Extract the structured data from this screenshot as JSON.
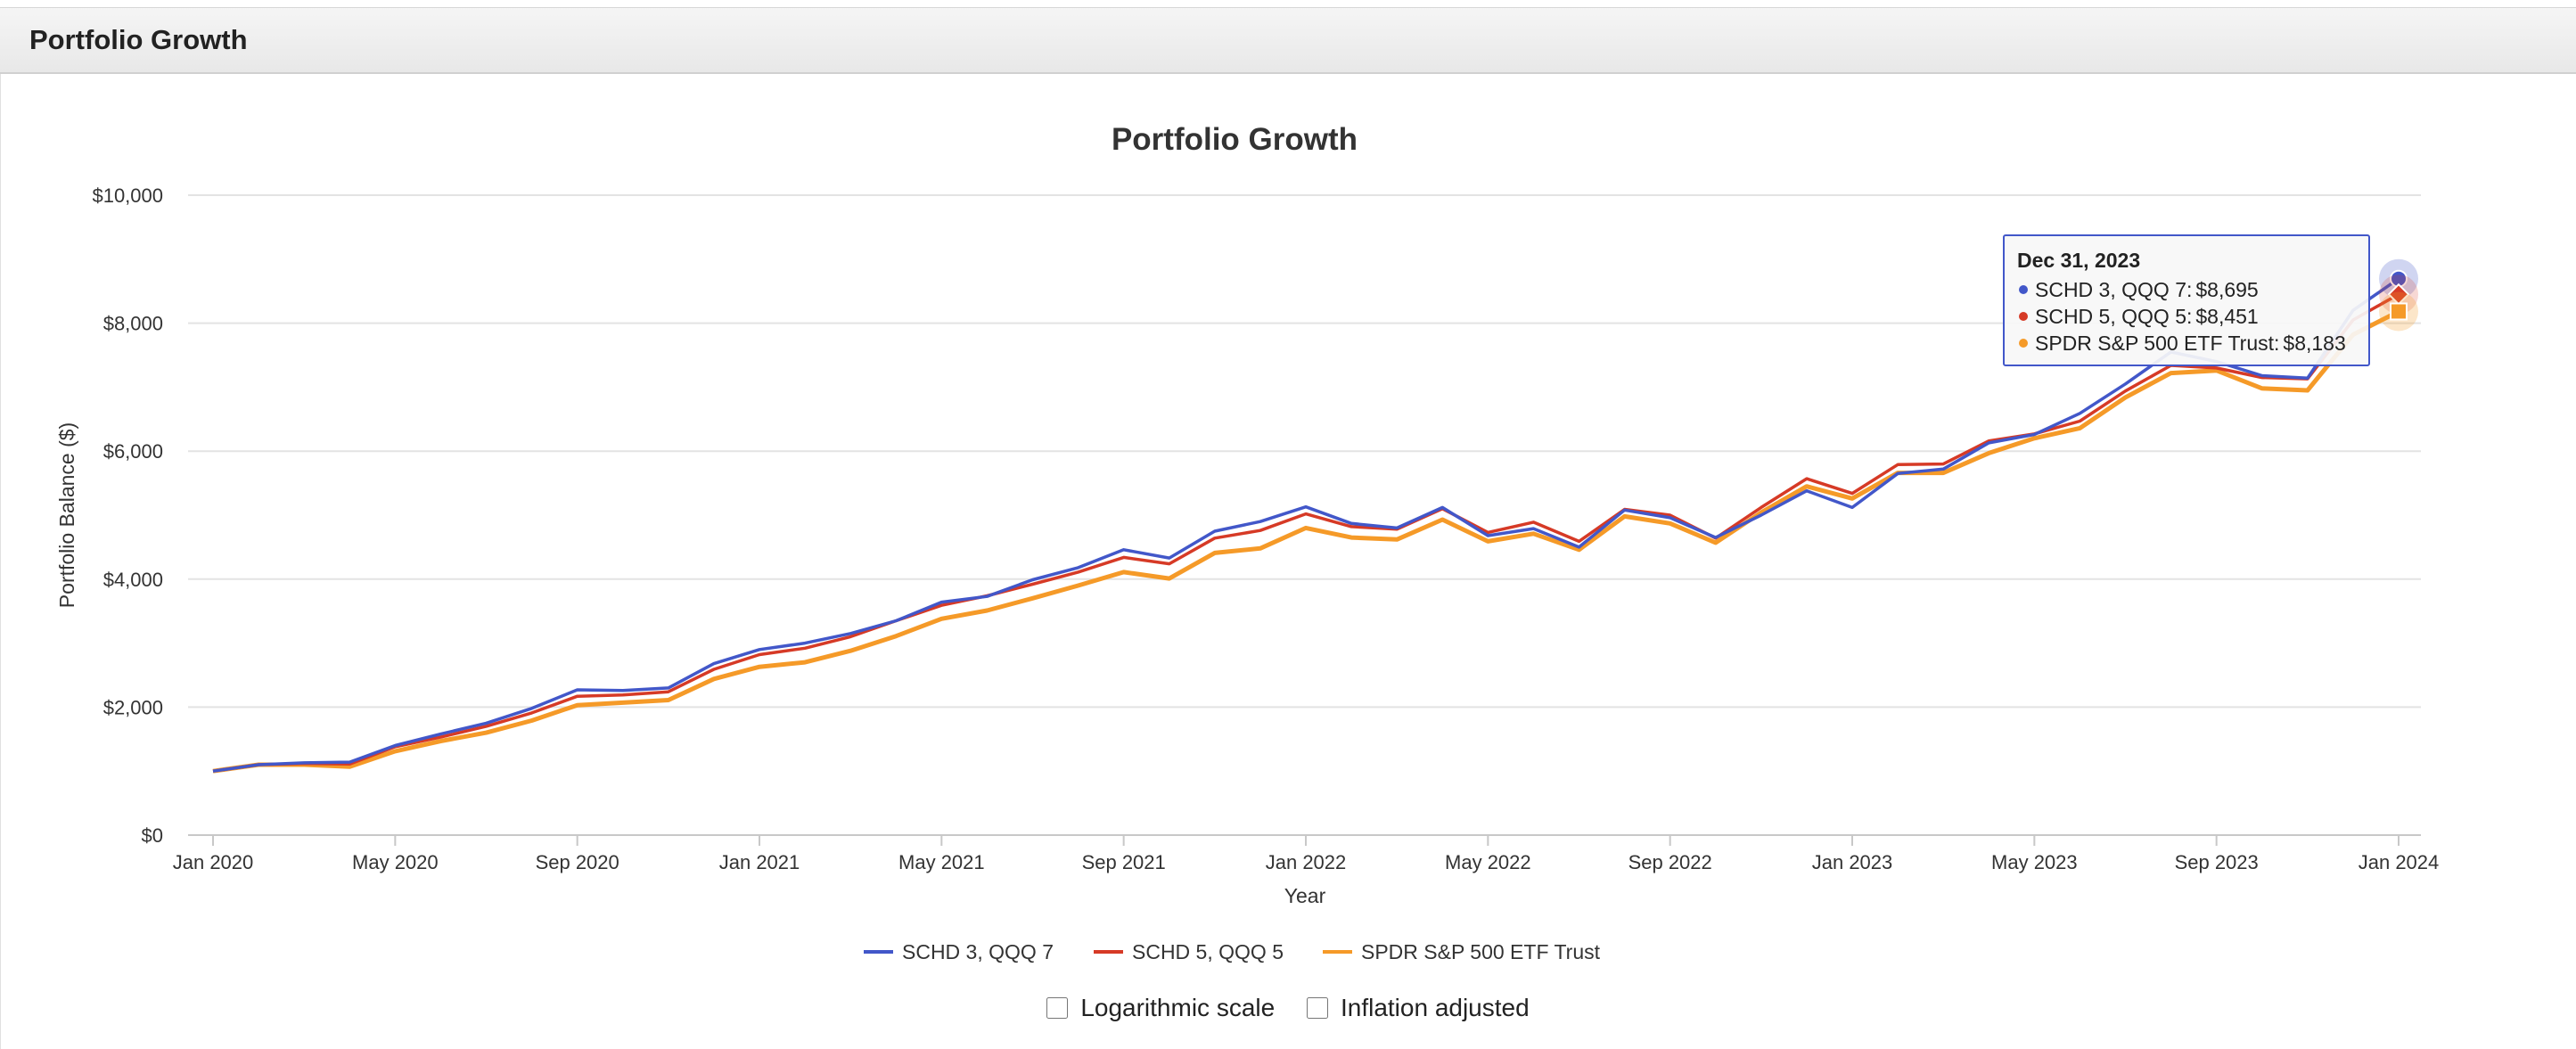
{
  "panel": {
    "title": "Portfolio Growth"
  },
  "controls": {
    "log_label": "Logarithmic scale",
    "inflation_label": "Inflation adjusted"
  },
  "tooltip": {
    "date": "Dec 31, 2023",
    "rows": [
      {
        "label": "SCHD 3, QQQ 7:",
        "value": "$8,695",
        "color": "#4257c9"
      },
      {
        "label": "SCHD 5, QQQ 5:",
        "value": "$8,451",
        "color": "#d63a26"
      },
      {
        "label": "SPDR S&P 500 ETF Trust:",
        "value": "$8,183",
        "color": "#f59a28"
      }
    ]
  },
  "chart_data": {
    "type": "line",
    "title": "Portfolio Growth",
    "xlabel": "Year",
    "ylabel": "Portfolio Balance ($)",
    "ylim": [
      0,
      10000
    ],
    "yticks": [
      0,
      2000,
      4000,
      6000,
      8000,
      10000
    ],
    "ytick_labels": [
      "$0",
      "$2,000",
      "$4,000",
      "$6,000",
      "$8,000",
      "$10,000"
    ],
    "x_start": "Jan 2020",
    "xtick_labels": [
      "Jan 2020",
      "May 2020",
      "Sep 2020",
      "Jan 2021",
      "May 2021",
      "Sep 2021",
      "Jan 2022",
      "May 2022",
      "Sep 2022",
      "Jan 2023",
      "May 2023",
      "Sep 2023",
      "Jan 2024"
    ],
    "xtick_months": [
      0,
      4,
      8,
      12,
      16,
      20,
      24,
      28,
      32,
      36,
      40,
      44,
      48
    ],
    "legend_position": "bottom",
    "series": [
      {
        "name": "SCHD 3, QQQ 7",
        "color": "#4257c9",
        "marker": "circle",
        "values": [
          1000,
          1100,
          1130,
          1140,
          1400,
          1580,
          1750,
          1980,
          2270,
          2260,
          2300,
          2680,
          2900,
          3000,
          3150,
          3350,
          3640,
          3730,
          3990,
          4180,
          4460,
          4330,
          4750,
          4900,
          5130,
          4870,
          4800,
          5120,
          4680,
          4790,
          4500,
          5080,
          4960,
          4650,
          5000,
          5380,
          5120,
          5650,
          5720,
          6130,
          6260,
          6590,
          7050,
          7550,
          7400,
          7180,
          7140,
          8200,
          8695
        ]
      },
      {
        "name": "SCHD 5, QQQ 5",
        "color": "#d63a26",
        "marker": "diamond",
        "values": [
          1000,
          1100,
          1120,
          1110,
          1380,
          1530,
          1700,
          1910,
          2170,
          2190,
          2240,
          2590,
          2820,
          2920,
          3100,
          3350,
          3590,
          3740,
          3920,
          4110,
          4340,
          4240,
          4640,
          4760,
          5020,
          4820,
          4780,
          5100,
          4730,
          4890,
          4590,
          5090,
          5000,
          4640,
          5120,
          5570,
          5340,
          5790,
          5800,
          6160,
          6270,
          6470,
          6940,
          7340,
          7300,
          7150,
          7130,
          8050,
          8451
        ]
      },
      {
        "name": "SPDR S&P 500 ETF Trust",
        "color": "#f59a28",
        "marker": "square",
        "values": [
          1000,
          1100,
          1100,
          1070,
          1310,
          1470,
          1600,
          1790,
          2030,
          2070,
          2110,
          2440,
          2630,
          2700,
          2880,
          3110,
          3380,
          3510,
          3700,
          3900,
          4110,
          4010,
          4410,
          4480,
          4800,
          4650,
          4620,
          4930,
          4590,
          4710,
          4460,
          4980,
          4870,
          4570,
          5040,
          5450,
          5260,
          5660,
          5660,
          5970,
          6200,
          6360,
          6840,
          7220,
          7260,
          6980,
          6950,
          7820,
          8183
        ]
      }
    ]
  }
}
